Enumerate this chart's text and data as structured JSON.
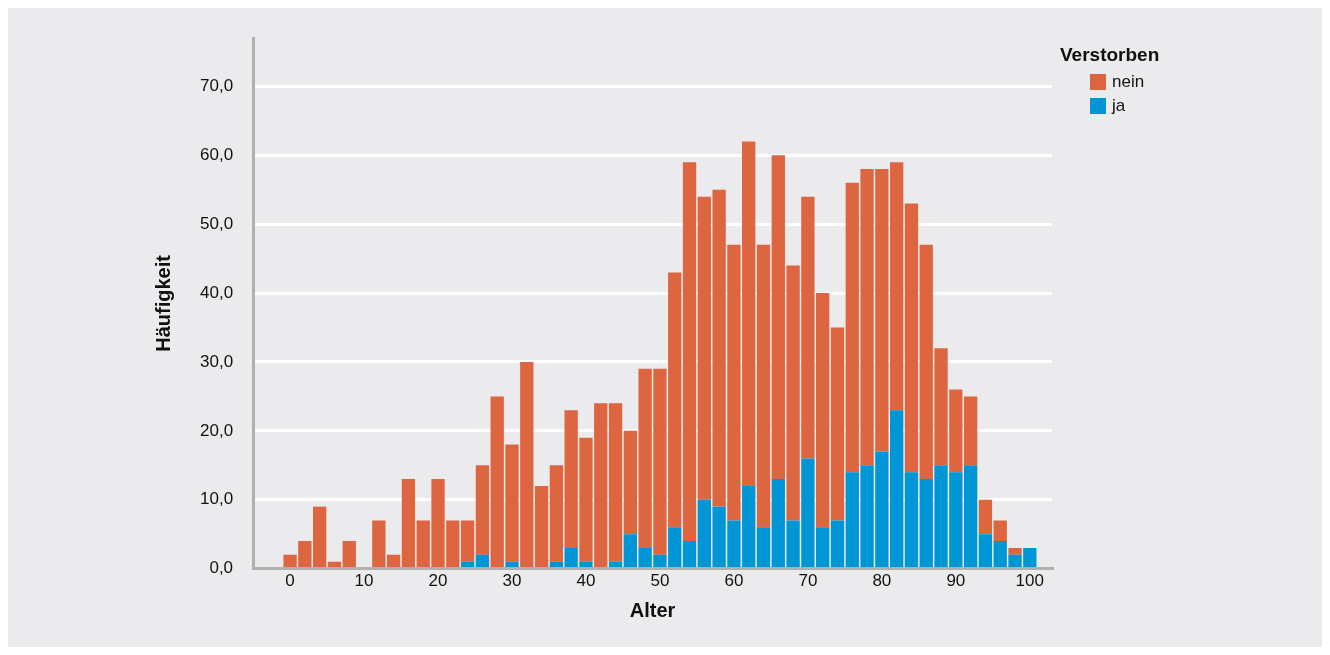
{
  "chart_data": {
    "type": "bar",
    "stacked": true,
    "xlabel": "Alter",
    "ylabel": "Häufigkeit",
    "legend_title": "Verstorben",
    "legend": "top right",
    "grid": "y",
    "x": [
      0,
      2,
      4,
      6,
      8,
      10,
      12,
      14,
      16,
      18,
      20,
      22,
      24,
      26,
      28,
      30,
      32,
      34,
      36,
      38,
      40,
      42,
      44,
      46,
      48,
      50,
      52,
      54,
      56,
      58,
      60,
      62,
      64,
      66,
      68,
      70,
      72,
      74,
      76,
      78,
      80,
      82,
      84,
      86,
      88,
      90,
      92,
      94,
      96,
      98,
      100
    ],
    "xlim": [
      -5,
      103
    ],
    "xticks": [
      0,
      10,
      20,
      30,
      40,
      50,
      60,
      70,
      80,
      90,
      100
    ],
    "ylim": [
      0,
      77
    ],
    "yticks": [
      {
        "value": 0,
        "label": "0,0"
      },
      {
        "value": 10,
        "label": "10,0"
      },
      {
        "value": 20,
        "label": "20,0"
      },
      {
        "value": 30,
        "label": "30,0"
      },
      {
        "value": 40,
        "label": "40,0"
      },
      {
        "value": 50,
        "label": "50,0"
      },
      {
        "value": 60,
        "label": "60,0"
      },
      {
        "value": 70,
        "label": "70,0"
      }
    ],
    "series": [
      {
        "name": "ja",
        "color": "#0096d6",
        "values": [
          0,
          0,
          0,
          0,
          0,
          0,
          0,
          0,
          0,
          0,
          0,
          0,
          1,
          2,
          0,
          1,
          0,
          0,
          1,
          3,
          1,
          0,
          1,
          5,
          3,
          2,
          6,
          4,
          10,
          9,
          7,
          12,
          6,
          13,
          7,
          16,
          6,
          7,
          14,
          15,
          17,
          23,
          14,
          13,
          15,
          14,
          15,
          5,
          4,
          2,
          3
        ]
      },
      {
        "name": "nein",
        "color": "#dd6540",
        "values": [
          2,
          4,
          9,
          1,
          4,
          0,
          7,
          2,
          13,
          7,
          13,
          7,
          6,
          13,
          25,
          17,
          30,
          12,
          14,
          20,
          18,
          24,
          23,
          15,
          26,
          27,
          37,
          55,
          44,
          46,
          40,
          50,
          41,
          47,
          37,
          38,
          34,
          28,
          42,
          43,
          41,
          36,
          39,
          34,
          17,
          12,
          10,
          5,
          3,
          1,
          0
        ]
      }
    ]
  }
}
